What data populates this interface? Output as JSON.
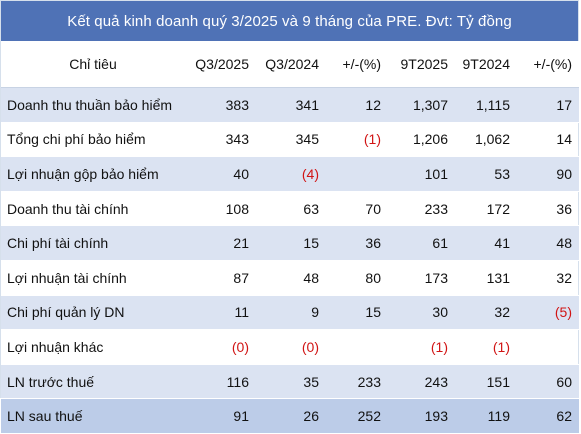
{
  "title": "Kết quả kinh doanh quý 3/2025 và 9 tháng của PRE. Đvt: Tỷ đồng",
  "header": {
    "label": "Chỉ tiêu",
    "q3_2025": "Q3/2025",
    "q3_2024": "Q3/2024",
    "change_q": "+/-(%)",
    "m9_2025": "9T2025",
    "m9_2024": "9T2024",
    "change_m": "+/-(%)"
  },
  "rows": [
    {
      "label": "Doanh thu thuần bảo hiểm",
      "q3_2025": "383",
      "q3_2024": "341",
      "change_q": "12",
      "m9_2025": "1,307",
      "m9_2024": "1,115",
      "change_m": "17"
    },
    {
      "label": "Tổng chi phí bảo hiểm",
      "q3_2025": "343",
      "q3_2024": "345",
      "change_q": "(1)",
      "m9_2025": "1,206",
      "m9_2024": "1,062",
      "change_m": "14"
    },
    {
      "label": "Lợi nhuận gộp  bảo hiểm",
      "q3_2025": "40",
      "q3_2024": "(4)",
      "change_q": "",
      "m9_2025": "101",
      "m9_2024": "53",
      "change_m": "90"
    },
    {
      "label": "Doanh thu tài chính",
      "q3_2025": "108",
      "q3_2024": "63",
      "change_q": "70",
      "m9_2025": "233",
      "m9_2024": "172",
      "change_m": "36"
    },
    {
      "label": "Chi phí tài chính",
      "q3_2025": "21",
      "q3_2024": "15",
      "change_q": "36",
      "m9_2025": "61",
      "m9_2024": "41",
      "change_m": "48"
    },
    {
      "label": "Lợi nhuận tài chính",
      "q3_2025": "87",
      "q3_2024": "48",
      "change_q": "80",
      "m9_2025": "173",
      "m9_2024": "131",
      "change_m": "32"
    },
    {
      "label": "Chi phí quản lý DN",
      "q3_2025": "11",
      "q3_2024": "9",
      "change_q": "15",
      "m9_2025": "30",
      "m9_2024": "32",
      "change_m": "(5)"
    },
    {
      "label": "Lợi nhuận khác",
      "q3_2025": "(0)",
      "q3_2024": "(0)",
      "change_q": "",
      "m9_2025": "(1)",
      "m9_2024": "(1)",
      "change_m": ""
    },
    {
      "label": "LN trước thuế",
      "q3_2025": "116",
      "q3_2024": "35",
      "change_q": "233",
      "m9_2025": "243",
      "m9_2024": "151",
      "change_m": "60"
    },
    {
      "label": "LN sau thuế",
      "q3_2025": "91",
      "q3_2024": "26",
      "change_q": "252",
      "m9_2025": "193",
      "m9_2024": "119",
      "change_m": "62"
    }
  ],
  "colors": {
    "header_bg": "#4f72b6",
    "stripe_bg": "#dbe3f2",
    "total_bg": "#bccce8",
    "negative": "#d11414"
  }
}
